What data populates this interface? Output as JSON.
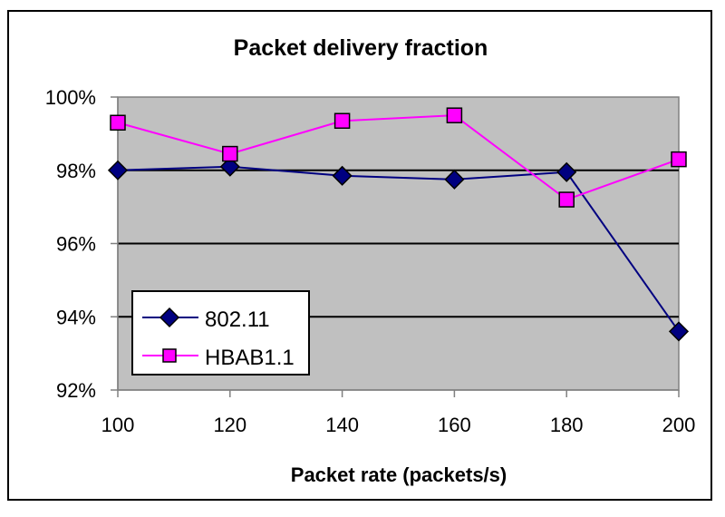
{
  "chart_data": {
    "type": "line",
    "title": "Packet delivery fraction",
    "xlabel": "Packet rate (packets/s)",
    "ylabel": "",
    "categories": [
      100,
      120,
      140,
      160,
      180,
      200
    ],
    "x_tick_labels": [
      "100",
      "120",
      "140",
      "160",
      "180",
      "200"
    ],
    "y_tick_labels": [
      "100%",
      "98%",
      "96%",
      "94%",
      "92%"
    ],
    "y_ticks": [
      100,
      98,
      96,
      94,
      92
    ],
    "ylim": [
      92,
      100
    ],
    "xlim": [
      100,
      200
    ],
    "grid": "horizontal major gridlines",
    "plot_background": "#C0C0C0",
    "legend_position": "inside lower-left",
    "series": [
      {
        "name": "802.11",
        "marker": "diamond",
        "color": "#000080",
        "values": [
          98.0,
          98.1,
          97.85,
          97.75,
          97.95,
          93.6
        ]
      },
      {
        "name": "HBAB1.1",
        "marker": "square",
        "color": "#FF00FF",
        "values": [
          99.3,
          98.45,
          99.35,
          99.5,
          97.2,
          98.3
        ]
      }
    ]
  },
  "legend": {
    "items": [
      {
        "label": "802.11"
      },
      {
        "label": "HBAB1.1"
      }
    ]
  }
}
